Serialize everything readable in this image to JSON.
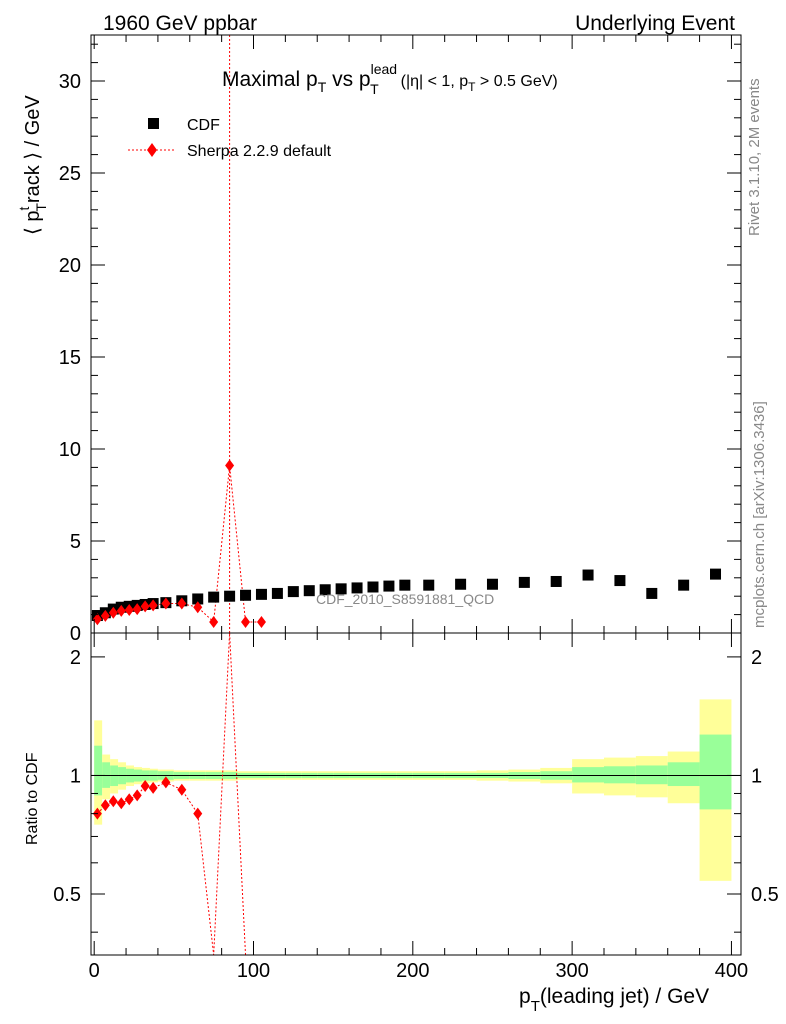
{
  "header": {
    "left": "1960 GeV ppbar",
    "right": "Underlying Event"
  },
  "side_labels": {
    "rivet": "Rivet 3.1.10,  2M events",
    "mcplots": "mcplots.cern.ch [arXiv:1306.3436]"
  },
  "watermark": "CDF_2010_S8591881_QCD",
  "colors": {
    "data": "#000000",
    "mc": "#ff0000",
    "band_inner": "#99ff99",
    "band_outer": "#ffff99",
    "watermark": "#888888"
  },
  "chart_data": [
    {
      "type": "scatter",
      "title": "Maximal p_T vs p_T^lead (|η| < 1, p_T > 0.5 GeV)",
      "title_parts": {
        "main": "Maximal p",
        "sub1": "T",
        "mid": " vs p",
        "sup": "lead",
        "sub2": "T",
        "cut": "(|η| < 1, p",
        "cut_sub": "T",
        "cut_end": " > 0.5 GeV)"
      },
      "ylabel": "⟨ p_T^track ⟩ / GeV",
      "ylabel_parts": {
        "open": "⟨ p",
        "sup": "t",
        "sub": "T",
        "rest": "rack ⟩ / GeV"
      },
      "xlim": [
        -2,
        406
      ],
      "ylim": [
        0,
        32.5
      ],
      "yticks": [
        0,
        5,
        10,
        15,
        20,
        25,
        30
      ],
      "legend_position": "top-left",
      "series": [
        {
          "name": "CDF",
          "marker": "square",
          "x": [
            2,
            7,
            12,
            17,
            22,
            27,
            32,
            37,
            45,
            55,
            65,
            75,
            85,
            95,
            105,
            115,
            125,
            135,
            145,
            155,
            165,
            175,
            185,
            195,
            210,
            230,
            250,
            270,
            290,
            310,
            330,
            350,
            370,
            390
          ],
          "y": [
            0.95,
            1.1,
            1.3,
            1.4,
            1.45,
            1.5,
            1.55,
            1.6,
            1.65,
            1.75,
            1.85,
            1.95,
            2.0,
            2.05,
            2.1,
            2.15,
            2.25,
            2.3,
            2.35,
            2.4,
            2.45,
            2.5,
            2.55,
            2.6,
            2.6,
            2.65,
            2.65,
            2.75,
            2.8,
            3.15,
            2.85,
            2.15,
            2.6,
            3.2
          ]
        },
        {
          "name": "Sherpa 2.2.9 default",
          "marker": "diamond",
          "x": [
            2,
            7,
            12,
            17,
            22,
            27,
            32,
            37,
            45,
            55,
            65,
            75,
            85,
            95,
            105
          ],
          "y": [
            0.75,
            0.93,
            1.1,
            1.2,
            1.25,
            1.3,
            1.45,
            1.5,
            1.6,
            1.6,
            1.4,
            0.6,
            9.1,
            0.6,
            0.6
          ],
          "yerr_spike": {
            "x": 85,
            "low": 0,
            "high": 32.5
          }
        }
      ]
    },
    {
      "type": "scatter",
      "ylabel": "Ratio to CDF",
      "xlabel": "p_T(leading jet) / GeV",
      "xlabel_parts": {
        "main": "p",
        "sub": "T",
        "rest": "(leading jet) / GeV"
      },
      "xlim": [
        -2,
        406
      ],
      "ylim": [
        0.35,
        2.3
      ],
      "yticks": [
        0.5,
        1,
        2
      ],
      "xticks": [
        0,
        100,
        200,
        300,
        400
      ],
      "reference_line": 1,
      "bands": {
        "edges": [
          0,
          5,
          10,
          15,
          20,
          25,
          30,
          35,
          40,
          50,
          60,
          70,
          80,
          90,
          100,
          110,
          120,
          130,
          140,
          150,
          160,
          170,
          180,
          190,
          200,
          220,
          240,
          260,
          280,
          300,
          320,
          340,
          360,
          380,
          400
        ],
        "inner_low": [
          0.89,
          0.93,
          0.94,
          0.95,
          0.96,
          0.965,
          0.97,
          0.97,
          0.975,
          0.98,
          0.98,
          0.98,
          0.98,
          0.985,
          0.985,
          0.985,
          0.985,
          0.985,
          0.985,
          0.985,
          0.985,
          0.985,
          0.985,
          0.985,
          0.985,
          0.985,
          0.985,
          0.98,
          0.975,
          0.96,
          0.955,
          0.95,
          0.94,
          0.82
        ],
        "inner_high": [
          1.19,
          1.08,
          1.06,
          1.05,
          1.04,
          1.035,
          1.03,
          1.03,
          1.025,
          1.02,
          1.02,
          1.02,
          1.02,
          1.015,
          1.015,
          1.015,
          1.015,
          1.015,
          1.015,
          1.015,
          1.015,
          1.015,
          1.015,
          1.015,
          1.015,
          1.015,
          1.015,
          1.02,
          1.025,
          1.05,
          1.055,
          1.06,
          1.08,
          1.27
        ],
        "outer_low": [
          0.75,
          0.87,
          0.9,
          0.92,
          0.94,
          0.95,
          0.955,
          0.96,
          0.965,
          0.97,
          0.97,
          0.97,
          0.97,
          0.975,
          0.975,
          0.975,
          0.975,
          0.975,
          0.975,
          0.975,
          0.975,
          0.975,
          0.975,
          0.975,
          0.975,
          0.975,
          0.97,
          0.965,
          0.955,
          0.9,
          0.89,
          0.88,
          0.85,
          0.54
        ],
        "outer_high": [
          1.38,
          1.13,
          1.1,
          1.08,
          1.06,
          1.05,
          1.045,
          1.04,
          1.035,
          1.03,
          1.03,
          1.03,
          1.03,
          1.025,
          1.025,
          1.025,
          1.025,
          1.025,
          1.025,
          1.025,
          1.025,
          1.025,
          1.025,
          1.025,
          1.025,
          1.025,
          1.03,
          1.035,
          1.045,
          1.1,
          1.11,
          1.12,
          1.15,
          1.56
        ]
      },
      "series": [
        {
          "name": "Sherpa 2.2.9 default",
          "marker": "diamond",
          "x": [
            2,
            7,
            12,
            17,
            22,
            27,
            32,
            37,
            45,
            55,
            65
          ],
          "y": [
            0.8,
            0.84,
            0.86,
            0.85,
            0.87,
            0.89,
            0.94,
            0.93,
            0.96,
            0.92,
            0.8
          ]
        }
      ]
    }
  ]
}
